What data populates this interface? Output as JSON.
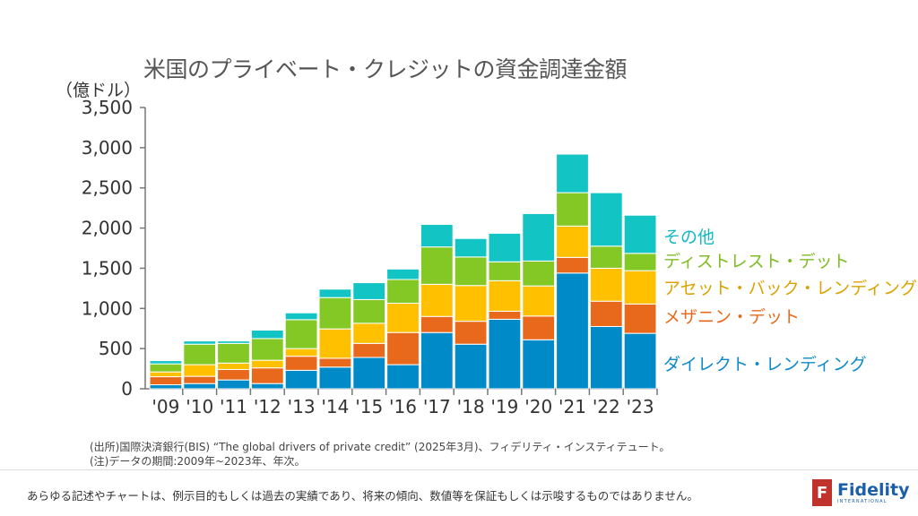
{
  "chart_data": {
    "type": "bar",
    "stacked": true,
    "title": "米国のプライベート・クレジットの資金調達金額",
    "ylabel": "（億ドル）",
    "ylim": [
      0,
      3500
    ],
    "yticks": [
      0,
      500,
      1000,
      1500,
      2000,
      2500,
      3000,
      3500
    ],
    "ytick_labels": [
      "0",
      "500",
      "1,000",
      "1,500",
      "2,000",
      "2,500",
      "3,000",
      "3,500"
    ],
    "grid": false,
    "legend_placement": "right",
    "categories": [
      "'09",
      "'10",
      "'11",
      "'12",
      "'13",
      "'14",
      "'15",
      "'16",
      "'17",
      "'18",
      "'19",
      "'20",
      "'21",
      "'22",
      "'23"
    ],
    "series": [
      {
        "name": "ダイレクト・レンディング",
        "color": "#008bc8",
        "label_color": "#0e8ac8",
        "values": [
          50,
          65,
          110,
          65,
          230,
          270,
          390,
          300,
          700,
          555,
          865,
          610,
          1440,
          775,
          690
        ]
      },
      {
        "name": "メザニン・デット",
        "color": "#e8691c",
        "label_color": "#e8691c",
        "values": [
          100,
          90,
          130,
          195,
          175,
          110,
          175,
          400,
          200,
          285,
          100,
          295,
          195,
          315,
          365
        ]
      },
      {
        "name": "アセット・バック・レンディング",
        "color": "#ffc000",
        "label_color": "#dba300",
        "values": [
          60,
          145,
          80,
          95,
          95,
          365,
          250,
          365,
          400,
          445,
          380,
          375,
          390,
          410,
          415
        ]
      },
      {
        "name": "ディストレスト・デット",
        "color": "#84c825",
        "label_color": "#7dbd22",
        "values": [
          100,
          255,
          245,
          270,
          360,
          390,
          295,
          295,
          465,
          355,
          235,
          310,
          415,
          275,
          215
        ]
      },
      {
        "name": "その他",
        "color": "#13c4c4",
        "label_color": "#13b8c2",
        "values": [
          40,
          40,
          30,
          105,
          85,
          105,
          210,
          130,
          280,
          230,
          355,
          590,
          480,
          665,
          475
        ]
      }
    ]
  },
  "notes": {
    "source": "(出所)国際決済銀行(BIS) “The global drivers of private credit” (2025年3月)、フィデリティ・インスティテュート。",
    "note": "(注)データの期間:2009年~2023年、年次。"
  },
  "footer": {
    "disclaimer": "あらゆる記述やチャートは、例示目的もしくは過去の実績であり、将来の傾向、数値等を保証もしくは示唆するものではありません。",
    "logo_name": "Fidelity",
    "logo_sub": "INTERNATIONAL",
    "logo_mark": "F"
  }
}
